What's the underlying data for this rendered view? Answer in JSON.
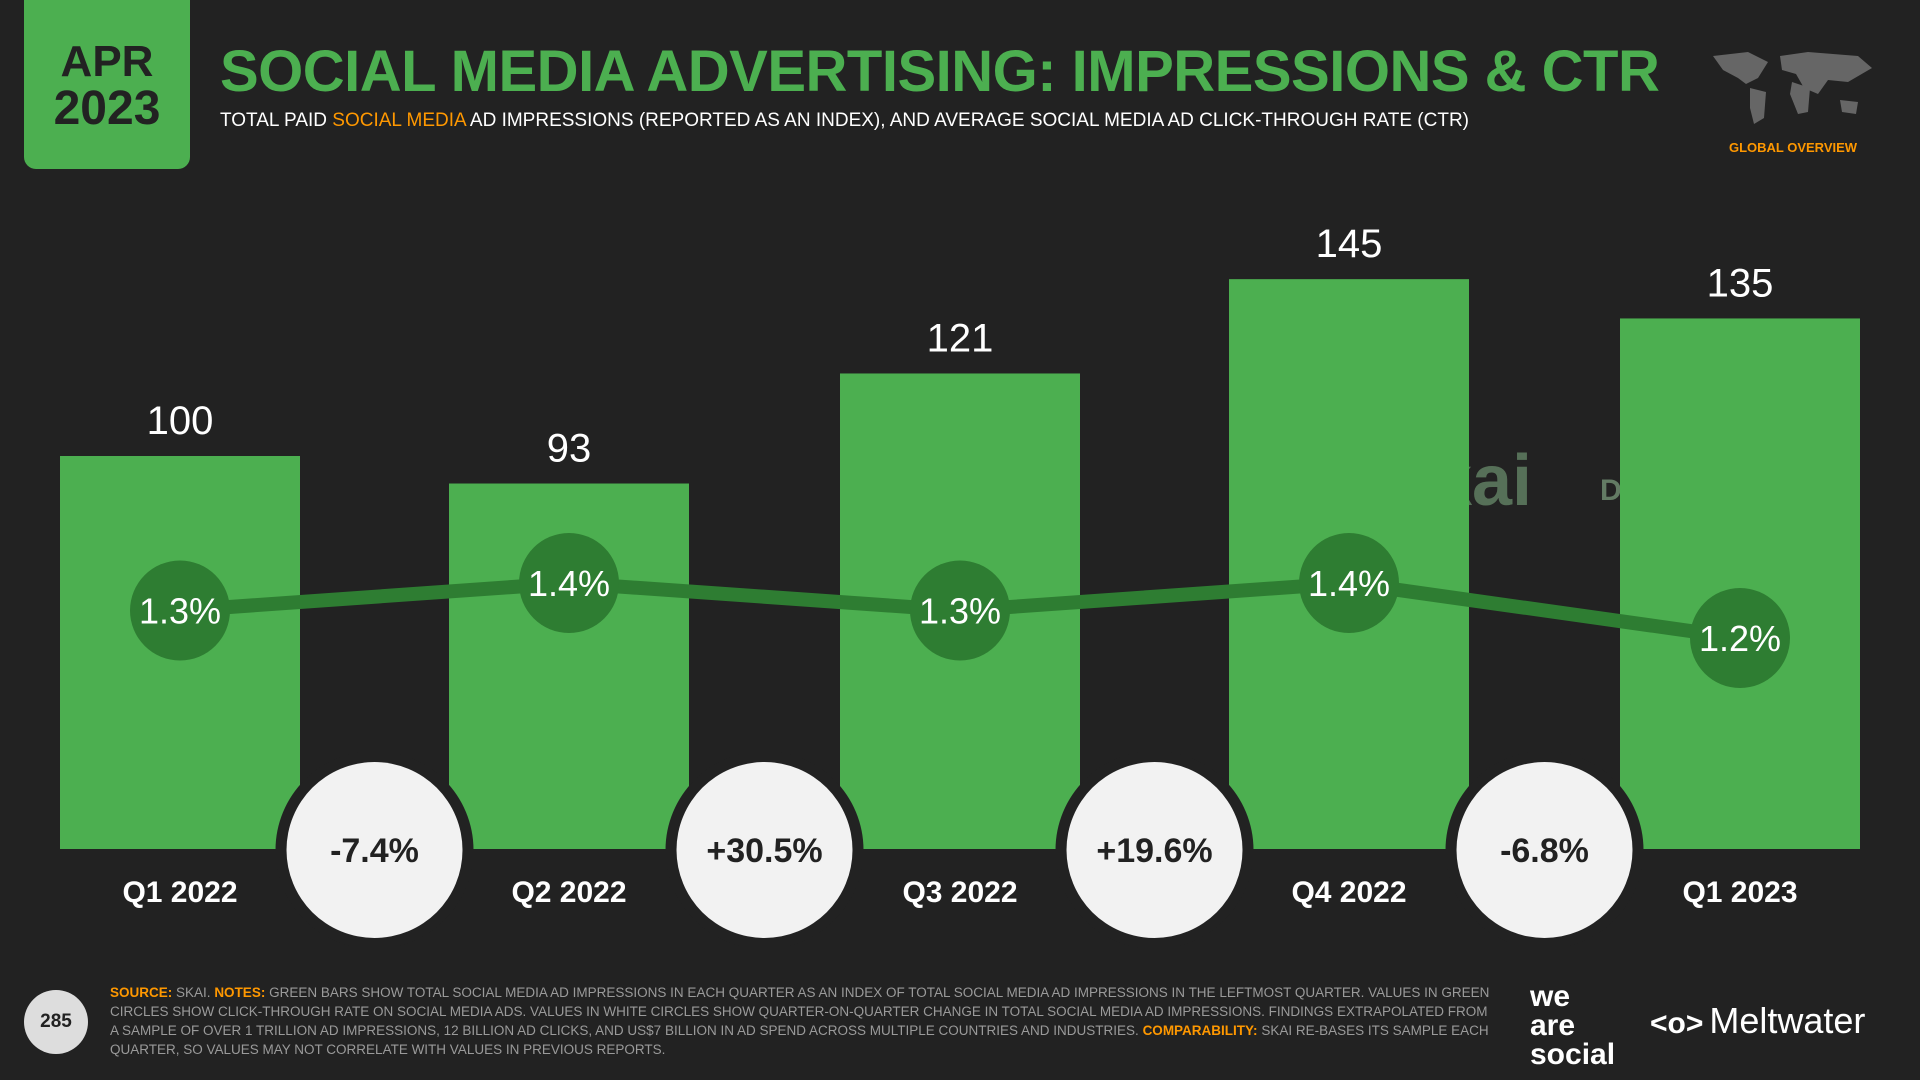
{
  "header": {
    "month": "APR",
    "year": "2023",
    "title": "SOCIAL MEDIA ADVERTISING: IMPRESSIONS & CTR",
    "subtitle": [
      "TOTAL PAID",
      "SOCIAL MEDIA",
      "AD IMPRESSIONS (REPORTED AS AN INDEX), AND AVERAGE SOCIAL MEDIA AD CLICK-THROUGH RATE (CTR)"
    ],
    "section": "GLOBAL OVERVIEW"
  },
  "chart_data": {
    "type": "bar",
    "categories": [
      "Q1 2022",
      "Q2 2022",
      "Q3 2022",
      "Q4 2022",
      "Q1 2023"
    ],
    "series": [
      {
        "color": "#4caf50",
        "values": [
          100,
          93,
          121,
          145,
          135
        ]
      },
      {
        "color": "#2e7d32",
        "axis": "y2",
        "values": [
          1.3,
          1.4,
          1.3,
          1.4,
          1.2
        ],
        "value_labels": [
          "1.3%",
          "1.4%",
          "1.3%",
          "1.4%",
          "1.2%"
        ]
      }
    ],
    "changes": {
      "values": [
        -7.4,
        30.5,
        19.6,
        -6.8
      ],
      "value_labels": [
        "-7.4%",
        "+30.5%",
        "+19.6%",
        "-6.8%"
      ]
    },
    "watermarks": [
      "skai",
      "DATAREPORTAL"
    ]
  },
  "footer": {
    "source_label": "SOURCE:",
    "source": "SKAI.",
    "notes_label": "NOTES:",
    "notes": "GREEN BARS SHOW TOTAL SOCIAL MEDIA AD IMPRESSIONS IN EACH QUARTER AS AN INDEX OF TOTAL SOCIAL MEDIA AD IMPRESSIONS IN THE LEFTMOST QUARTER. VALUES IN GREEN CIRCLES SHOW CLICK-THROUGH RATE ON SOCIAL MEDIA ADS. VALUES IN WHITE CIRCLES SHOW QUARTER-ON-QUARTER CHANGE IN TOTAL SOCIAL MEDIA AD IMPRESSIONS. FINDINGS EXTRAPOLATED FROM A SAMPLE OF OVER 1 TRILLION AD IMPRESSIONS, 12 BILLION AD CLICKS, AND US$7 BILLION IN AD SPEND ACROSS MULTIPLE COUNTRIES AND INDUSTRIES.",
    "comparability_label": "COMPARABILITY:",
    "comparability": "SKAI RE-BASES ITS SAMPLE EACH QUARTER, SO VALUES MAY NOT CORRELATE WITH VALUES IN PREVIOUS REPORTS.",
    "page": "285",
    "logo_1": [
      "we",
      "are",
      "social"
    ],
    "logo_2": "Meltwater"
  }
}
